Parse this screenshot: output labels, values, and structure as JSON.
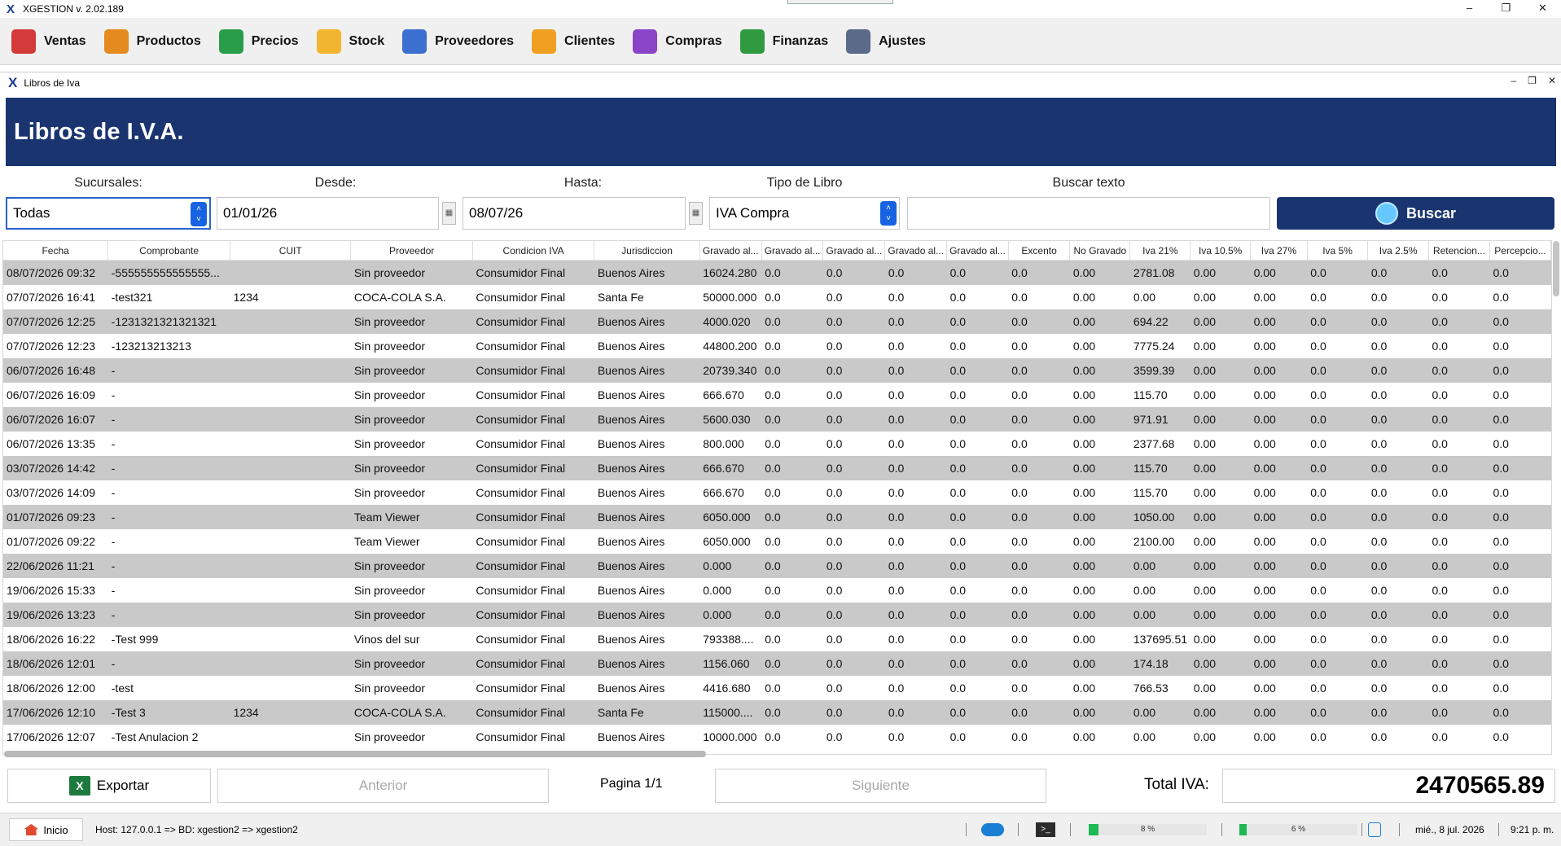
{
  "app": {
    "title": "XGESTION v. 2.02.189"
  },
  "menu": [
    {
      "label": "Ventas",
      "icon": "store-icon",
      "color": "#d33a3a"
    },
    {
      "label": "Productos",
      "icon": "gift-box-icon",
      "color": "#e58a1f"
    },
    {
      "label": "Precios",
      "icon": "price-tag-icon",
      "color": "#2a9d4b"
    },
    {
      "label": "Stock",
      "icon": "cart-icon",
      "color": "#f2b530"
    },
    {
      "label": "Proveedores",
      "icon": "supplier-person-icon",
      "color": "#3b6fd0"
    },
    {
      "label": "Clientes",
      "icon": "client-person-icon",
      "color": "#f0a020"
    },
    {
      "label": "Compras",
      "icon": "purchase-truck-icon",
      "color": "#8a44c8"
    },
    {
      "label": "Finanzas",
      "icon": "money-bag-icon",
      "color": "#2f9a3f"
    },
    {
      "label": "Ajustes",
      "icon": "gear-icon",
      "color": "#5a6a88"
    }
  ],
  "window": {
    "title": "Libros de Iva"
  },
  "page": {
    "title": "Libros de I.V.A."
  },
  "filters": {
    "sucursales_label": "Sucursales:",
    "sucursales_value": "Todas",
    "desde_label": "Desde:",
    "desde_value": "01/01/26",
    "hasta_label": "Hasta:",
    "hasta_value": "08/07/26",
    "tipo_label": "Tipo de Libro",
    "tipo_value": "IVA Compra",
    "buscar_label": "Buscar texto",
    "buscar_value": "",
    "buscar_button": "Buscar"
  },
  "table": {
    "columns": [
      "Fecha",
      "Comprobante",
      "CUIT",
      "Proveedor",
      "Condicion IVA",
      "Jurisdiccion",
      "Gravado al...",
      "Gravado al...",
      "Gravado al...",
      "Gravado al...",
      "Gravado al...",
      "Excento",
      "No Gravado",
      "Iva 21%",
      "Iva 10.5%",
      "Iva 27%",
      "Iva 5%",
      "Iva 2.5%",
      "Retencion...",
      "Percepcio..."
    ],
    "rows": [
      [
        "08/07/2026 09:32",
        "-555555555555555...",
        "",
        "Sin proveedor",
        "Consumidor Final",
        "Buenos Aires",
        "16024.280",
        "0.0",
        "0.0",
        "0.0",
        "0.0",
        "0.0",
        "0.00",
        "2781.08",
        "0.00",
        "0.00",
        "0.0",
        "0.0",
        "0.0",
        "0.0"
      ],
      [
        "07/07/2026 16:41",
        "-test321",
        "1234",
        "COCA-COLA S.A.",
        "Consumidor Final",
        "Santa Fe",
        "50000.000",
        "0.0",
        "0.0",
        "0.0",
        "0.0",
        "0.0",
        "0.00",
        "0.00",
        "0.00",
        "0.00",
        "0.0",
        "0.0",
        "0.0",
        "0.0"
      ],
      [
        "07/07/2026 12:25",
        "-1231321321321321",
        "",
        "Sin proveedor",
        "Consumidor Final",
        "Buenos Aires",
        "4000.020",
        "0.0",
        "0.0",
        "0.0",
        "0.0",
        "0.0",
        "0.00",
        "694.22",
        "0.00",
        "0.00",
        "0.0",
        "0.0",
        "0.0",
        "0.0"
      ],
      [
        "07/07/2026 12:23",
        "-123213213213",
        "",
        "Sin proveedor",
        "Consumidor Final",
        "Buenos Aires",
        "44800.200",
        "0.0",
        "0.0",
        "0.0",
        "0.0",
        "0.0",
        "0.00",
        "7775.24",
        "0.00",
        "0.00",
        "0.0",
        "0.0",
        "0.0",
        "0.0"
      ],
      [
        "06/07/2026 16:48",
        "-",
        "",
        "Sin proveedor",
        "Consumidor Final",
        "Buenos Aires",
        "20739.340",
        "0.0",
        "0.0",
        "0.0",
        "0.0",
        "0.0",
        "0.00",
        "3599.39",
        "0.00",
        "0.00",
        "0.0",
        "0.0",
        "0.0",
        "0.0"
      ],
      [
        "06/07/2026 16:09",
        "-",
        "",
        "Sin proveedor",
        "Consumidor Final",
        "Buenos Aires",
        "666.670",
        "0.0",
        "0.0",
        "0.0",
        "0.0",
        "0.0",
        "0.00",
        "115.70",
        "0.00",
        "0.00",
        "0.0",
        "0.0",
        "0.0",
        "0.0"
      ],
      [
        "06/07/2026 16:07",
        "-",
        "",
        "Sin proveedor",
        "Consumidor Final",
        "Buenos Aires",
        "5600.030",
        "0.0",
        "0.0",
        "0.0",
        "0.0",
        "0.0",
        "0.00",
        "971.91",
        "0.00",
        "0.00",
        "0.0",
        "0.0",
        "0.0",
        "0.0"
      ],
      [
        "06/07/2026 13:35",
        "-",
        "",
        "Sin proveedor",
        "Consumidor Final",
        "Buenos Aires",
        "800.000",
        "0.0",
        "0.0",
        "0.0",
        "0.0",
        "0.0",
        "0.00",
        "2377.68",
        "0.00",
        "0.00",
        "0.0",
        "0.0",
        "0.0",
        "0.0"
      ],
      [
        "03/07/2026 14:42",
        "-",
        "",
        "Sin proveedor",
        "Consumidor Final",
        "Buenos Aires",
        "666.670",
        "0.0",
        "0.0",
        "0.0",
        "0.0",
        "0.0",
        "0.00",
        "115.70",
        "0.00",
        "0.00",
        "0.0",
        "0.0",
        "0.0",
        "0.0"
      ],
      [
        "03/07/2026 14:09",
        "-",
        "",
        "Sin proveedor",
        "Consumidor Final",
        "Buenos Aires",
        "666.670",
        "0.0",
        "0.0",
        "0.0",
        "0.0",
        "0.0",
        "0.00",
        "115.70",
        "0.00",
        "0.00",
        "0.0",
        "0.0",
        "0.0",
        "0.0"
      ],
      [
        "01/07/2026 09:23",
        "-",
        "",
        "Team Viewer",
        "Consumidor Final",
        "Buenos Aires",
        "6050.000",
        "0.0",
        "0.0",
        "0.0",
        "0.0",
        "0.0",
        "0.00",
        "1050.00",
        "0.00",
        "0.00",
        "0.0",
        "0.0",
        "0.0",
        "0.0"
      ],
      [
        "01/07/2026 09:22",
        "-",
        "",
        "Team Viewer",
        "Consumidor Final",
        "Buenos Aires",
        "6050.000",
        "0.0",
        "0.0",
        "0.0",
        "0.0",
        "0.0",
        "0.00",
        "2100.00",
        "0.00",
        "0.00",
        "0.0",
        "0.0",
        "0.0",
        "0.0"
      ],
      [
        "22/06/2026 11:21",
        "-",
        "",
        "Sin proveedor",
        "Consumidor Final",
        "Buenos Aires",
        "0.000",
        "0.0",
        "0.0",
        "0.0",
        "0.0",
        "0.0",
        "0.00",
        "0.00",
        "0.00",
        "0.00",
        "0.0",
        "0.0",
        "0.0",
        "0.0"
      ],
      [
        "19/06/2026 15:33",
        "-",
        "",
        "Sin proveedor",
        "Consumidor Final",
        "Buenos Aires",
        "0.000",
        "0.0",
        "0.0",
        "0.0",
        "0.0",
        "0.0",
        "0.00",
        "0.00",
        "0.00",
        "0.00",
        "0.0",
        "0.0",
        "0.0",
        "0.0"
      ],
      [
        "19/06/2026 13:23",
        "-",
        "",
        "Sin proveedor",
        "Consumidor Final",
        "Buenos Aires",
        "0.000",
        "0.0",
        "0.0",
        "0.0",
        "0.0",
        "0.0",
        "0.00",
        "0.00",
        "0.00",
        "0.00",
        "0.0",
        "0.0",
        "0.0",
        "0.0"
      ],
      [
        "18/06/2026 16:22",
        "-Test 999",
        "",
        "Vinos del sur",
        "Consumidor Final",
        "Buenos Aires",
        "793388....",
        "0.0",
        "0.0",
        "0.0",
        "0.0",
        "0.0",
        "0.00",
        "137695.51",
        "0.00",
        "0.00",
        "0.0",
        "0.0",
        "0.0",
        "0.0"
      ],
      [
        "18/06/2026 12:01",
        "-",
        "",
        "Sin proveedor",
        "Consumidor Final",
        "Buenos Aires",
        "1156.060",
        "0.0",
        "0.0",
        "0.0",
        "0.0",
        "0.0",
        "0.00",
        "174.18",
        "0.00",
        "0.00",
        "0.0",
        "0.0",
        "0.0",
        "0.0"
      ],
      [
        "18/06/2026 12:00",
        "-test",
        "",
        "Sin proveedor",
        "Consumidor Final",
        "Buenos Aires",
        "4416.680",
        "0.0",
        "0.0",
        "0.0",
        "0.0",
        "0.0",
        "0.00",
        "766.53",
        "0.00",
        "0.00",
        "0.0",
        "0.0",
        "0.0",
        "0.0"
      ],
      [
        "17/06/2026 12:10",
        "-Test 3",
        "1234",
        "COCA-COLA S.A.",
        "Consumidor Final",
        "Santa Fe",
        "115000....",
        "0.0",
        "0.0",
        "0.0",
        "0.0",
        "0.0",
        "0.00",
        "0.00",
        "0.00",
        "0.00",
        "0.0",
        "0.0",
        "0.0",
        "0.0"
      ],
      [
        "17/06/2026 12:07",
        "-Test Anulacion 2",
        "",
        "Sin proveedor",
        "Consumidor Final",
        "Buenos Aires",
        "10000.000",
        "0.0",
        "0.0",
        "0.0",
        "0.0",
        "0.0",
        "0.00",
        "0.00",
        "0.00",
        "0.00",
        "0.0",
        "0.0",
        "0.0",
        "0.0"
      ]
    ]
  },
  "footer": {
    "export_label": "Exportar",
    "prev_label": "Anterior",
    "page_label": "Pagina 1/1",
    "next_label": "Siguiente",
    "total_label": "Total IVA:",
    "total_value": "2470565.89"
  },
  "status": {
    "inicio_label": "Inicio",
    "host": "Host: 127.0.0.1 => BD: xgestion2 => xgestion2",
    "progress1": {
      "text": "8 %",
      "fraction": 0.08
    },
    "progress2": {
      "text": "6 %",
      "fraction": 0.06
    },
    "date": "mié., 8 jul. 2026",
    "time": "9:21 p. m."
  },
  "colors": {
    "accent": "#1a3470",
    "row_shade": "#c9c9c9",
    "spin_blue": "#1662e2"
  }
}
